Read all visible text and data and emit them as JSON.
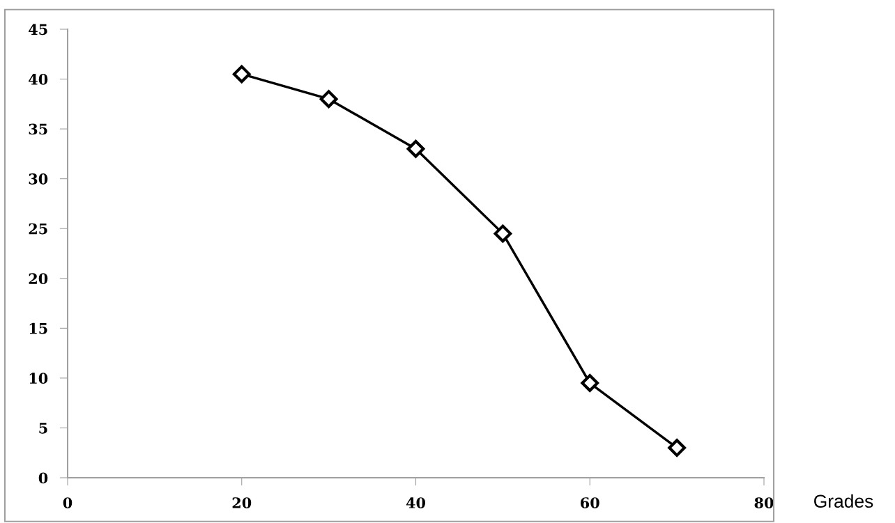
{
  "chart_data": {
    "type": "line",
    "xlabel": "Grades",
    "x": [
      20,
      30,
      40,
      50,
      60,
      70
    ],
    "series": [
      {
        "color": "#000000",
        "values": [
          40.5,
          38,
          33,
          24.5,
          9.5,
          3
        ]
      }
    ],
    "xlim": [
      0,
      80
    ],
    "xticks": [
      0,
      20,
      40,
      60,
      80
    ],
    "ylim": [
      0,
      45
    ],
    "yticks": [
      0,
      5,
      10,
      15,
      20,
      25,
      30,
      35,
      40,
      45
    ],
    "marker": "diamond",
    "line_style": "solid",
    "grid": false,
    "legend": false
  }
}
